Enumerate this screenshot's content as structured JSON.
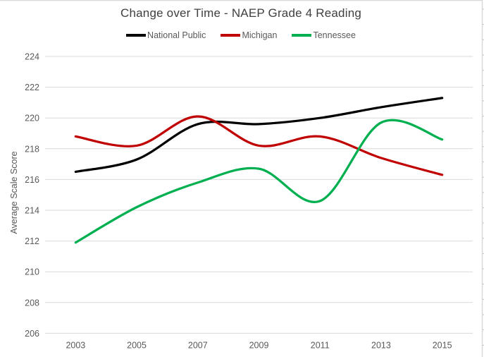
{
  "chart_data": {
    "type": "line",
    "title": "Change over Time - NAEP Grade 4 Reading",
    "xlabel": "",
    "ylabel": "Average Scale Score",
    "categories": [
      "2003",
      "2005",
      "2007",
      "2009",
      "2011",
      "2013",
      "2015"
    ],
    "series": [
      {
        "name": "National Public",
        "color": "#000000",
        "values": [
          216.5,
          217.3,
          219.6,
          219.6,
          220.0,
          220.7,
          221.3
        ]
      },
      {
        "name": "Michigan",
        "color": "#C00000",
        "values": [
          218.8,
          218.2,
          220.1,
          218.2,
          218.8,
          217.4,
          216.3
        ]
      },
      {
        "name": "Tennessee",
        "color": "#00B050",
        "values": [
          211.9,
          214.2,
          215.8,
          216.7,
          214.6,
          219.7,
          218.6
        ]
      }
    ],
    "ylim": [
      206,
      224
    ],
    "ytick_step": 2,
    "yticks": [
      "206",
      "208",
      "210",
      "212",
      "214",
      "216",
      "218",
      "220",
      "222",
      "224"
    ],
    "grid": "horizontal gridlines only",
    "legend_position": "top",
    "line_style": "smoothed"
  },
  "colors": {
    "gridline": "#D9D9D9",
    "axis_text": "#595959",
    "title_text": "#404040",
    "chart_border": "#D9D9D9",
    "sheet_row_tick": "#C0C0C0"
  }
}
